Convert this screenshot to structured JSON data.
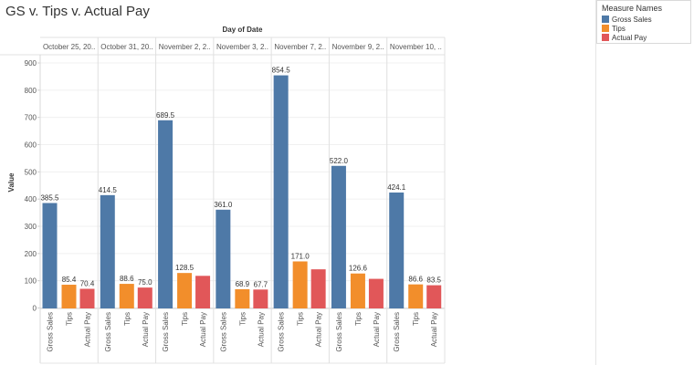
{
  "title": "GS v. Tips v. Actual Pay",
  "colors": {
    "Gross Sales": "#4e79a7",
    "Tips": "#f28e2b",
    "Actual Pay": "#e15759"
  },
  "chart_data": {
    "type": "bar",
    "column_header": "Day of Date",
    "ylabel": "Value",
    "ylim": [
      0,
      950
    ],
    "y_ticks": [
      0,
      100,
      200,
      300,
      400,
      500,
      600,
      700,
      800,
      900
    ],
    "categories": [
      "Gross Sales",
      "Tips",
      "Actual Pay"
    ],
    "groups": [
      {
        "date_label": "October 25, 20..",
        "values": [
          385.5,
          85.4,
          70.4
        ],
        "labels": [
          "385.5",
          "85.4",
          "70.4"
        ]
      },
      {
        "date_label": "October 31, 20..",
        "values": [
          414.5,
          88.6,
          75.0
        ],
        "labels": [
          "414.5",
          "88.6",
          "75.0"
        ]
      },
      {
        "date_label": "November 2, 2..",
        "values": [
          689.5,
          128.5,
          118
        ],
        "labels": [
          "689.5",
          "128.5",
          ""
        ]
      },
      {
        "date_label": "November 3, 2..",
        "values": [
          361.0,
          68.9,
          67.7
        ],
        "labels": [
          "361.0",
          "68.9",
          "67.7"
        ]
      },
      {
        "date_label": "November 7, 2..",
        "values": [
          854.5,
          171.0,
          142
        ],
        "labels": [
          "854.5",
          "171.0",
          ""
        ]
      },
      {
        "date_label": "November 9, 2..",
        "values": [
          522.0,
          126.6,
          107
        ],
        "labels": [
          "522.0",
          "126.6",
          ""
        ]
      },
      {
        "date_label": "November 10, ..",
        "values": [
          424.1,
          86.6,
          83.5
        ],
        "labels": [
          "424.1",
          "86.6",
          "83.5"
        ]
      }
    ],
    "grid": true,
    "legend": {
      "title": "Measure Names",
      "position": "top-right",
      "entries": [
        "Gross Sales",
        "Tips",
        "Actual Pay"
      ]
    }
  }
}
